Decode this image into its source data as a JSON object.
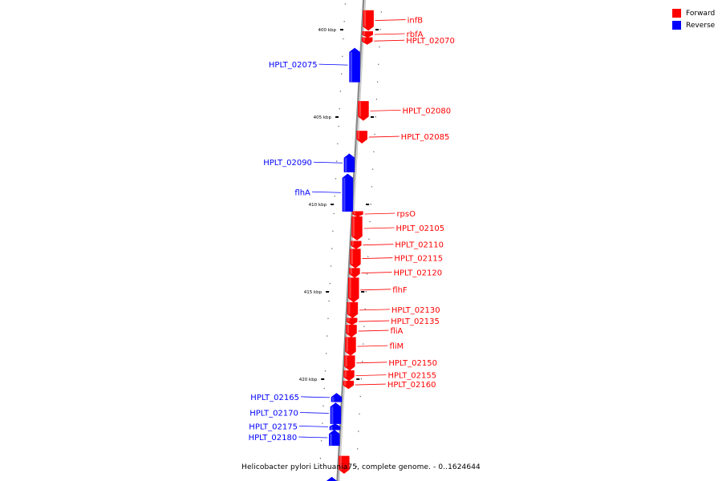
{
  "colors": {
    "forward": "#ff0000",
    "reverse": "#0000ff",
    "backbone": "#b0b0b0"
  },
  "legend": [
    {
      "label": "Forward",
      "strand": "forward"
    },
    {
      "label": "Reverse",
      "strand": "reverse"
    }
  ],
  "caption": "Helicobacter pylori Lithuania75, complete genome. - 0..1624644",
  "ticks": [
    {
      "kbp": 400,
      "label": "400 kbp"
    },
    {
      "kbp": 405,
      "label": "405 kbp"
    },
    {
      "kbp": 410,
      "label": "410 kbp"
    },
    {
      "kbp": 415,
      "label": "415 kbp"
    },
    {
      "kbp": 420,
      "label": "420 kbp"
    }
  ],
  "features": [
    {
      "name": "infB",
      "strand": "forward",
      "start_kbp": 398.9,
      "end_kbp": 400.05
    },
    {
      "name": "rbfA",
      "strand": "forward",
      "start_kbp": 400.1,
      "end_kbp": 400.45
    },
    {
      "name": "HPLT_02070",
      "strand": "forward",
      "start_kbp": 400.45,
      "end_kbp": 400.85
    },
    {
      "name": "HPLT_02075",
      "strand": "reverse",
      "start_kbp": 401.05,
      "end_kbp": 403.0
    },
    {
      "name": "HPLT_02080",
      "strand": "forward",
      "start_kbp": 404.1,
      "end_kbp": 405.2
    },
    {
      "name": "HPLT_02085",
      "strand": "forward",
      "start_kbp": 405.8,
      "end_kbp": 406.5
    },
    {
      "name": "HPLT_02090",
      "strand": "reverse",
      "start_kbp": 407.1,
      "end_kbp": 408.15
    },
    {
      "name": "flhA",
      "strand": "reverse",
      "start_kbp": 408.25,
      "end_kbp": 410.4
    },
    {
      "name": "rpsO",
      "strand": "forward",
      "start_kbp": 410.4,
      "end_kbp": 410.7
    },
    {
      "name": "HPLT_02105",
      "strand": "forward",
      "start_kbp": 410.7,
      "end_kbp": 412.05
    },
    {
      "name": "HPLT_02110",
      "strand": "forward",
      "start_kbp": 412.1,
      "end_kbp": 412.55
    },
    {
      "name": "HPLT_02115",
      "strand": "forward",
      "start_kbp": 412.55,
      "end_kbp": 413.65
    },
    {
      "name": "HPLT_02120",
      "strand": "forward",
      "start_kbp": 413.65,
      "end_kbp": 414.2
    },
    {
      "name": "flhF",
      "strand": "forward",
      "start_kbp": 414.2,
      "end_kbp": 415.6
    },
    {
      "name": "HPLT_02130",
      "strand": "forward",
      "start_kbp": 415.6,
      "end_kbp": 416.5
    },
    {
      "name": "HPLT_02135",
      "strand": "forward",
      "start_kbp": 416.5,
      "end_kbp": 416.9
    },
    {
      "name": "fliA",
      "strand": "forward",
      "start_kbp": 416.9,
      "end_kbp": 417.6
    },
    {
      "name": "fliM",
      "strand": "forward",
      "start_kbp": 417.6,
      "end_kbp": 418.65
    },
    {
      "name": "HPLT_02150",
      "strand": "forward",
      "start_kbp": 418.65,
      "end_kbp": 419.5
    },
    {
      "name": "HPLT_02155",
      "strand": "forward",
      "start_kbp": 419.5,
      "end_kbp": 420.1
    },
    {
      "name": "HPLT_02160",
      "strand": "forward",
      "start_kbp": 420.1,
      "end_kbp": 420.55
    },
    {
      "name": "HPLT_02165",
      "strand": "reverse",
      "start_kbp": 420.8,
      "end_kbp": 421.3
    },
    {
      "name": "HPLT_02170",
      "strand": "reverse",
      "start_kbp": 421.35,
      "end_kbp": 422.55
    },
    {
      "name": "HPLT_02175",
      "strand": "reverse",
      "start_kbp": 422.55,
      "end_kbp": 422.9
    },
    {
      "name": "HPLT_02180",
      "strand": "reverse",
      "start_kbp": 422.9,
      "end_kbp": 423.8
    },
    {
      "name": "",
      "strand": "forward",
      "start_kbp": 424.4,
      "end_kbp": 425.4
    },
    {
      "name": "",
      "strand": "reverse",
      "start_kbp": 425.6,
      "end_kbp": 426.5
    }
  ]
}
